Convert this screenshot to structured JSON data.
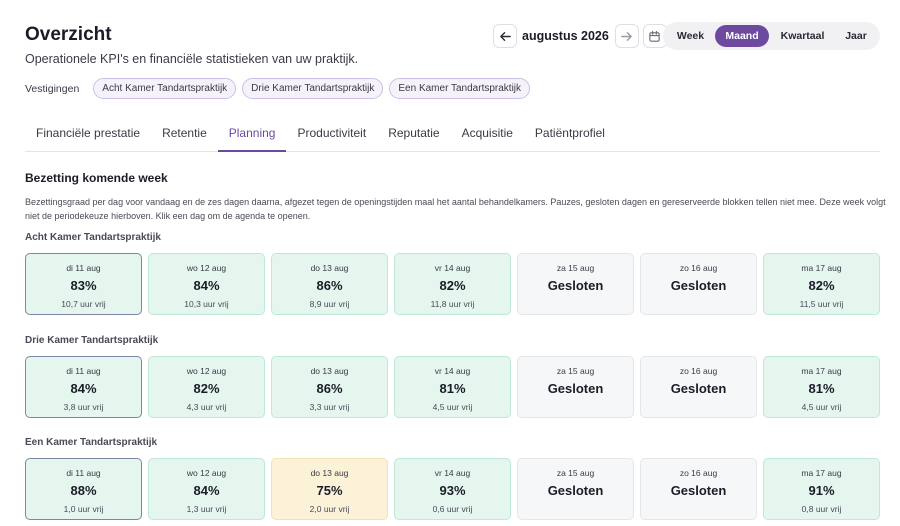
{
  "header": {
    "title": "Overzicht",
    "subtitle": "Operationele KPI's en financiële statistieken van uw praktijk."
  },
  "nav": {
    "month": "augustus 2026",
    "prev_icon": "arrow-left-icon",
    "next_icon": "arrow-right-icon",
    "calendar_icon": "calendar-icon"
  },
  "period": {
    "options": [
      "Week",
      "Maand",
      "Kwartaal",
      "Jaar"
    ],
    "selected": "Maand"
  },
  "locations": {
    "label": "Vestigingen",
    "chips": [
      "Acht Kamer Tandartspraktijk",
      "Drie Kamer Tandartspraktijk",
      "Een Kamer Tandartspraktijk"
    ]
  },
  "tabs": [
    "Financiële prestatie",
    "Retentie",
    "Planning",
    "Productiviteit",
    "Reputatie",
    "Acquisitie",
    "Patiëntprofiel"
  ],
  "active_tab": "Planning",
  "section": {
    "title": "Bezetting komende week",
    "description": "Bezettingsgraad per dag voor vandaag en de zes dagen daarna, afgezet tegen de openingstijden maal het aantal behandelkamers. Pauzes, gesloten dagen en gereserveerde blokken tellen niet mee. Deze week volgt niet de periodekeuze hierboven. Klik een dag om de agenda te openen."
  },
  "colors": {
    "accent": "#6e4a9e",
    "ok_bg": "#e4f6ee",
    "warn_bg": "#fbf2d8",
    "closed_bg": "#f6f7f9"
  },
  "groups": [
    {
      "name": "Acht Kamer Tandartspraktijk",
      "days": [
        {
          "date": "di 11 aug",
          "value": "83%",
          "free": "10,7 uur vrij"
        },
        {
          "date": "wo 12 aug",
          "value": "84%",
          "free": "10,3 uur vrij"
        },
        {
          "date": "do 13 aug",
          "value": "86%",
          "free": "8,9 uur vrij"
        },
        {
          "date": "vr 14 aug",
          "value": "82%",
          "free": "11,8 uur vrij"
        },
        {
          "date": "za 15 aug",
          "value": "Gesloten",
          "free": ""
        },
        {
          "date": "zo 16 aug",
          "value": "Gesloten",
          "free": ""
        },
        {
          "date": "ma 17 aug",
          "value": "82%",
          "free": "11,5 uur vrij"
        }
      ]
    },
    {
      "name": "Drie Kamer Tandartspraktijk",
      "days": [
        {
          "date": "di 11 aug",
          "value": "84%",
          "free": "3,8 uur vrij"
        },
        {
          "date": "wo 12 aug",
          "value": "82%",
          "free": "4,3 uur vrij"
        },
        {
          "date": "do 13 aug",
          "value": "86%",
          "free": "3,3 uur vrij"
        },
        {
          "date": "vr 14 aug",
          "value": "81%",
          "free": "4,5 uur vrij"
        },
        {
          "date": "za 15 aug",
          "value": "Gesloten",
          "free": ""
        },
        {
          "date": "zo 16 aug",
          "value": "Gesloten",
          "free": ""
        },
        {
          "date": "ma 17 aug",
          "value": "81%",
          "free": "4,5 uur vrij"
        }
      ]
    },
    {
      "name": "Een Kamer Tandartspraktijk",
      "days": [
        {
          "date": "di 11 aug",
          "value": "88%",
          "free": "1,0 uur vrij"
        },
        {
          "date": "wo 12 aug",
          "value": "84%",
          "free": "1,3 uur vrij"
        },
        {
          "date": "do 13 aug",
          "value": "75%",
          "free": "2,0 uur vrij"
        },
        {
          "date": "vr 14 aug",
          "value": "93%",
          "free": "0,6 uur vrij"
        },
        {
          "date": "za 15 aug",
          "value": "Gesloten",
          "free": ""
        },
        {
          "date": "zo 16 aug",
          "value": "Gesloten",
          "free": ""
        },
        {
          "date": "ma 17 aug",
          "value": "91%",
          "free": "0,8 uur vrij"
        }
      ]
    }
  ]
}
